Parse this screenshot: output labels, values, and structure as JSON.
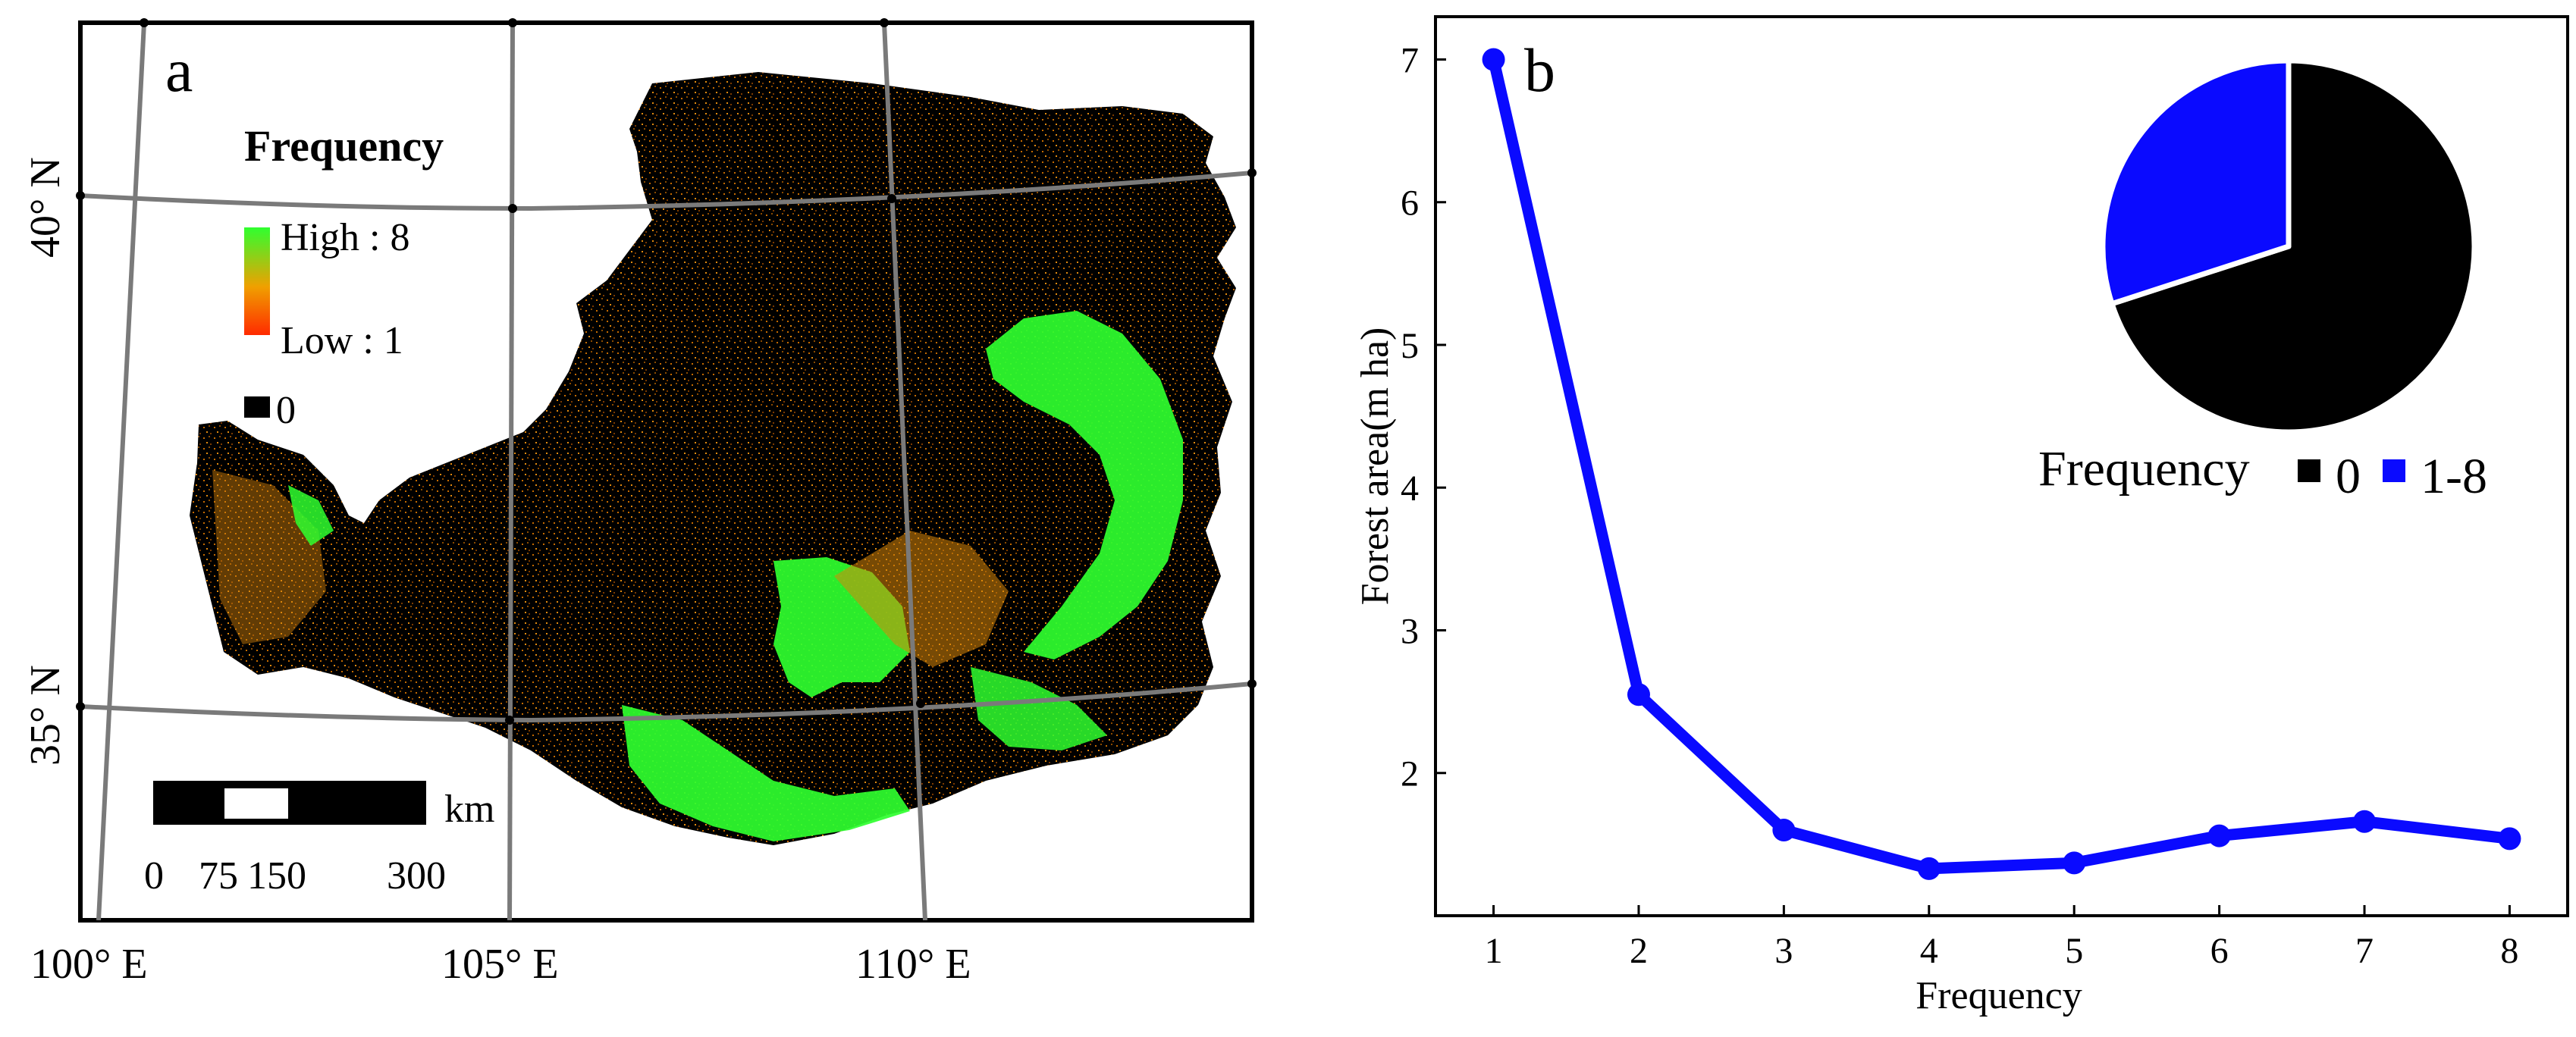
{
  "colors": {
    "map_background": "#000000",
    "freq_high": "#2fff2f",
    "freq_mid": "#f0a000",
    "freq_low": "#ff2a00",
    "zero": "#000000",
    "graticule": "#7a7a7a",
    "line": "#0a0aff",
    "pie_zero": "#000000",
    "pie_nonzero": "#0a0aff"
  },
  "panel_a": {
    "label": "a",
    "legend": {
      "title": "Frequency",
      "high": "High : 8",
      "low": "Low : 1",
      "zero": "0"
    },
    "scalebar": {
      "unit": "km",
      "ticks": [
        "0",
        "75",
        "150",
        "300"
      ]
    },
    "graticule_labels": {
      "lat_40": "40° N",
      "lat_35": "35° N",
      "lon_100": "100° E",
      "lon_105": "105° E",
      "lon_110": "110° E"
    }
  },
  "chart_data": [
    {
      "type": "line",
      "panel_label": "b",
      "xlabel": "Frequency",
      "ylabel": "Forest area(m ha)",
      "x": [
        1,
        2,
        3,
        4,
        5,
        6,
        7,
        8
      ],
      "y": [
        7.0,
        2.55,
        1.6,
        1.33,
        1.37,
        1.56,
        1.66,
        1.54
      ],
      "xlim": [
        0.6,
        8.4
      ],
      "ylim": [
        1.0,
        7.3
      ],
      "xticks": [
        "1",
        "2",
        "3",
        "4",
        "5",
        "6",
        "7",
        "8"
      ],
      "yticks": [
        "2",
        "3",
        "4",
        "5",
        "6",
        "7"
      ],
      "grid": false
    },
    {
      "type": "pie",
      "legend_title": "Frequency",
      "labels": [
        "0",
        "1-8"
      ],
      "values": [
        70,
        30
      ],
      "legend_position": "bottom"
    }
  ]
}
